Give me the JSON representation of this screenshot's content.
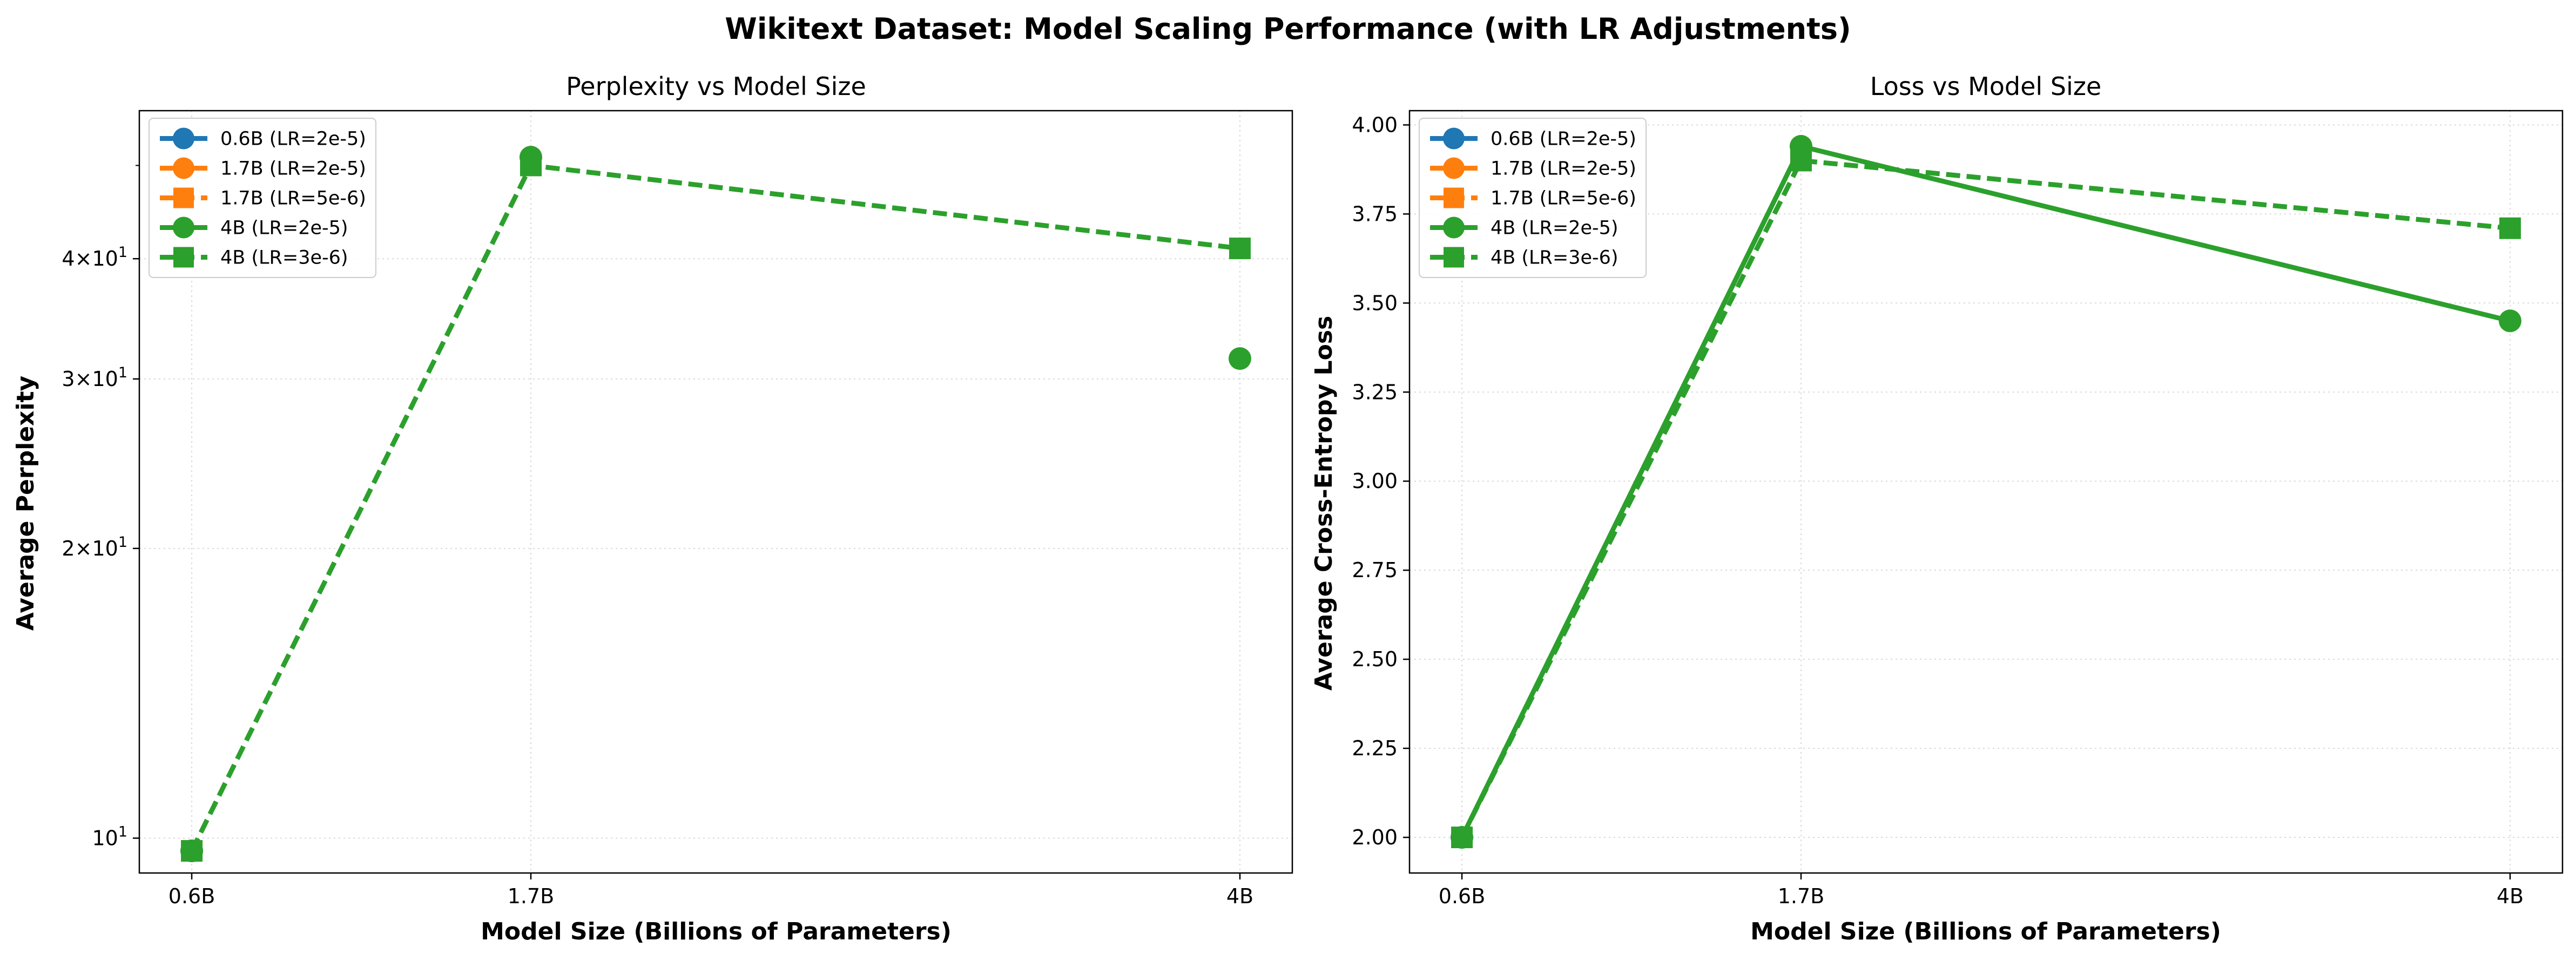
{
  "figure": {
    "suptitle": "Wikitext Dataset: Model Scaling Performance (with LR Adjustments)"
  },
  "colors": {
    "0.6B": "#1f77b4",
    "1.7B": "#ff7f0e",
    "4B": "#2ca02c",
    "grid": "#d9d9d9"
  },
  "legend": {
    "placement": "upper-left",
    "items": [
      {
        "label": "0.6B (LR=2e-5)",
        "color": "#1f77b4",
        "marker": "circle",
        "linestyle": "solid"
      },
      {
        "label": "1.7B (LR=2e-5)",
        "color": "#ff7f0e",
        "marker": "circle",
        "linestyle": "solid"
      },
      {
        "label": "1.7B (LR=5e-6)",
        "color": "#ff7f0e",
        "marker": "square",
        "linestyle": "dashed"
      },
      {
        "label": "4B (LR=2e-5)",
        "color": "#2ca02c",
        "marker": "circle",
        "linestyle": "solid"
      },
      {
        "label": "4B (LR=3e-6)",
        "color": "#2ca02c",
        "marker": "square",
        "linestyle": "dashed"
      }
    ]
  },
  "chart_data": [
    {
      "type": "line",
      "title": "Perplexity vs Model Size",
      "xlabel": "Model Size (Billions of Parameters)",
      "ylabel": "Average Perplexity",
      "yscale": "log",
      "grid": true,
      "x": [
        0.6,
        1.7,
        4
      ],
      "xticks": [
        {
          "value": 0.6,
          "label": "0.6B"
        },
        {
          "value": 1.7,
          "label": "1.7B"
        },
        {
          "value": 4,
          "label": "4B"
        }
      ],
      "yticks": [
        {
          "value": 10,
          "base": "10",
          "exp": "1"
        },
        {
          "value": 20,
          "coef": "2",
          "base": "10",
          "exp": "1"
        },
        {
          "value": 30,
          "coef": "3",
          "base": "10",
          "exp": "1"
        },
        {
          "value": 40,
          "coef": "4",
          "base": "10",
          "exp": "1"
        }
      ],
      "ylim": [
        9.2,
        57
      ],
      "series": [
        {
          "name": "0.6B (LR=2e-5)",
          "x": [
            0.6
          ],
          "y": [
            9.7
          ],
          "color": "#1f77b4",
          "marker": "circle",
          "dashed": false
        },
        {
          "name": "1.7B (LR=2e-5)",
          "x": [
            1.7
          ],
          "y": [
            51
          ],
          "color": "#ff7f0e",
          "marker": "circle",
          "dashed": false
        },
        {
          "name": "1.7B (LR=5e-6)",
          "x": [
            1.7
          ],
          "y": [
            50
          ],
          "color": "#ff7f0e",
          "marker": "square",
          "dashed": true
        },
        {
          "name": "4B (LR=2e-5)",
          "x": [
            0.6,
            1.7,
            4
          ],
          "y": [
            9.7,
            51,
            31.5
          ],
          "color": "#2ca02c",
          "marker": "circle",
          "dashed": false,
          "line": false
        },
        {
          "name": "4B (LR=3e-6)",
          "x": [
            0.6,
            1.7,
            4
          ],
          "y": [
            9.7,
            50,
            41
          ],
          "color": "#2ca02c",
          "marker": "square",
          "dashed": true
        }
      ]
    },
    {
      "type": "line",
      "title": "Loss vs Model Size",
      "xlabel": "Model Size (Billions of Parameters)",
      "ylabel": "Average Cross-Entropy Loss",
      "yscale": "linear",
      "grid": true,
      "x": [
        0.6,
        1.7,
        4
      ],
      "xticks": [
        {
          "value": 0.6,
          "label": "0.6B"
        },
        {
          "value": 1.7,
          "label": "1.7B"
        },
        {
          "value": 4,
          "label": "4B"
        }
      ],
      "yticks": [
        {
          "value": 2.0,
          "label": "2.00"
        },
        {
          "value": 2.25,
          "label": "2.25"
        },
        {
          "value": 2.5,
          "label": "2.50"
        },
        {
          "value": 2.75,
          "label": "2.75"
        },
        {
          "value": 3.0,
          "label": "3.00"
        },
        {
          "value": 3.25,
          "label": "3.25"
        },
        {
          "value": 3.5,
          "label": "3.50"
        },
        {
          "value": 3.75,
          "label": "3.75"
        },
        {
          "value": 4.0,
          "label": "4.00"
        }
      ],
      "ylim": [
        1.9,
        4.04
      ],
      "series": [
        {
          "name": "0.6B (LR=2e-5)",
          "x": [
            0.6
          ],
          "y": [
            2.0
          ],
          "color": "#1f77b4",
          "marker": "circle",
          "dashed": false
        },
        {
          "name": "1.7B (LR=2e-5)",
          "x": [
            1.7
          ],
          "y": [
            3.94
          ],
          "color": "#ff7f0e",
          "marker": "circle",
          "dashed": false
        },
        {
          "name": "1.7B (LR=5e-6)",
          "x": [
            1.7
          ],
          "y": [
            3.9
          ],
          "color": "#ff7f0e",
          "marker": "square",
          "dashed": true
        },
        {
          "name": "4B (LR=2e-5)",
          "x": [
            0.6,
            1.7,
            4
          ],
          "y": [
            2.0,
            3.94,
            3.45
          ],
          "color": "#2ca02c",
          "marker": "circle",
          "dashed": false
        },
        {
          "name": "4B (LR=3e-6)",
          "x": [
            0.6,
            1.7,
            4
          ],
          "y": [
            2.0,
            3.9,
            3.71
          ],
          "color": "#2ca02c",
          "marker": "square",
          "dashed": true
        }
      ]
    }
  ]
}
